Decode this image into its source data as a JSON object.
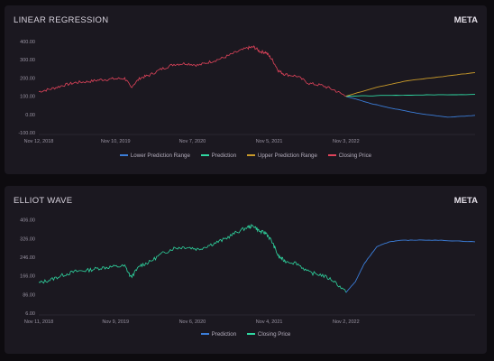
{
  "panels": [
    {
      "title": "LINEAR REGRESSION",
      "ticker": "META"
    },
    {
      "title": "ELLIOT WAVE",
      "ticker": "META"
    }
  ],
  "chart_data": [
    {
      "type": "line",
      "title": "LINEAR REGRESSION",
      "x_tick_labels": [
        "Nov 12, 2018",
        "Nov 10, 2019",
        "Nov 7, 2020",
        "Nov 5, 2021",
        "Nov 3, 2022"
      ],
      "y_tick_labels": [
        "400.00",
        "300.00",
        "200.00",
        "100.00",
        "0.00",
        "-100.00"
      ],
      "y_ticks": [
        400,
        300,
        200,
        100,
        0,
        -100
      ],
      "ylim": [
        -100,
        420
      ],
      "grid": false,
      "legend_position": "bottom",
      "legend": [
        "Lower Prediction Range",
        "Prediction",
        "Upper Prediction Range",
        "Closing Price"
      ],
      "colors": {
        "lower": "#3b7dd8",
        "prediction": "#2fd6a0",
        "upper": "#c99a2a",
        "closing": "#e0435a"
      },
      "series": [
        {
          "name": "Closing Price",
          "color": "#e0435a",
          "x": [
            0,
            0.04,
            0.08,
            0.12,
            0.16,
            0.2,
            0.24,
            0.28,
            0.3,
            0.33,
            0.36,
            0.4,
            0.44,
            0.48,
            0.52,
            0.56,
            0.6,
            0.64,
            0.68,
            0.7,
            0.72,
            0.74,
            0.76,
            0.78,
            0.8,
            0.84,
            0.88,
            0.92,
            0.96,
            1.0
          ],
          "y": [
            125,
            140,
            160,
            175,
            180,
            190,
            195,
            198,
            150,
            200,
            215,
            250,
            275,
            280,
            270,
            290,
            310,
            340,
            365,
            370,
            345,
            340,
            300,
            240,
            220,
            210,
            170,
            160,
            135,
            100
          ]
        },
        {
          "name": "Lower Prediction Range",
          "color": "#3b7dd8",
          "x": [
            1.0,
            1.08,
            1.16,
            1.24,
            1.33,
            1.42
          ],
          "y": [
            100,
            60,
            30,
            5,
            -15,
            -5
          ]
        },
        {
          "name": "Prediction",
          "color": "#2fd6a0",
          "x": [
            1.0,
            1.1,
            1.2,
            1.3,
            1.42
          ],
          "y": [
            100,
            103,
            106,
            108,
            110
          ]
        },
        {
          "name": "Upper Prediction Range",
          "color": "#c99a2a",
          "x": [
            1.0,
            1.1,
            1.2,
            1.3,
            1.42
          ],
          "y": [
            100,
            150,
            185,
            205,
            230
          ]
        }
      ]
    },
    {
      "type": "line",
      "title": "ELLIOT WAVE",
      "x_tick_labels": [
        "Nov 11, 2018",
        "Nov 9, 2019",
        "Nov 6, 2020",
        "Nov 4, 2021",
        "Nov 2, 2022"
      ],
      "y_tick_labels": [
        "406.00",
        "326.00",
        "246.00",
        "166.00",
        "86.00",
        "6.00"
      ],
      "y_ticks": [
        406,
        326,
        246,
        166,
        86,
        6
      ],
      "ylim": [
        6,
        420
      ],
      "grid": false,
      "legend_position": "bottom",
      "legend": [
        "Prediction",
        "Closing Price"
      ],
      "colors": {
        "prediction": "#3b7dd8",
        "closing": "#2fd6a0"
      },
      "series": [
        {
          "name": "Closing Price",
          "color": "#2fd6a0",
          "x": [
            0,
            0.04,
            0.08,
            0.12,
            0.16,
            0.2,
            0.24,
            0.28,
            0.3,
            0.33,
            0.36,
            0.4,
            0.44,
            0.48,
            0.52,
            0.56,
            0.6,
            0.64,
            0.68,
            0.7,
            0.72,
            0.74,
            0.76,
            0.78,
            0.8,
            0.84,
            0.88,
            0.92,
            0.96,
            1.0
          ],
          "y": [
            135,
            150,
            170,
            185,
            190,
            200,
            205,
            208,
            160,
            210,
            225,
            260,
            285,
            290,
            280,
            300,
            320,
            350,
            375,
            380,
            355,
            350,
            310,
            250,
            230,
            220,
            180,
            170,
            145,
            95
          ]
        },
        {
          "name": "Prediction",
          "color": "#3b7dd8",
          "x": [
            1.0,
            1.03,
            1.06,
            1.1,
            1.14,
            1.18,
            1.24,
            1.32,
            1.42
          ],
          "y": [
            95,
            140,
            220,
            290,
            312,
            318,
            320,
            318,
            312
          ]
        }
      ]
    }
  ]
}
